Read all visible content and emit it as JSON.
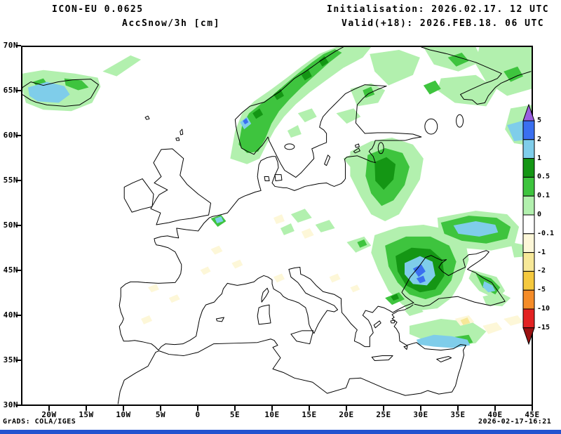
{
  "header": {
    "model": "ICON-EU 0.0625",
    "variable": "AccSnow/3h [cm]",
    "init": "Initialisation: 2026.02.17. 12 UTC",
    "valid": "Valid(+18): 2026.FEB.18. 06 UTC"
  },
  "footer": {
    "credit": "GrADS: COLA/IGES",
    "timestamp": "2026-02-17-16:21"
  },
  "map": {
    "lat_ticks": [
      "70N",
      "65N",
      "60N",
      "55N",
      "50N",
      "45N",
      "40N",
      "35N",
      "30N"
    ],
    "lon_ticks": [
      "20W",
      "15W",
      "10W",
      "5W",
      "0",
      "5E",
      "10E",
      "15E",
      "20E",
      "25E",
      "30E",
      "35E",
      "40E",
      "45E"
    ]
  },
  "colorbar": {
    "labels": [
      "5",
      "2",
      "1",
      "0.5",
      "0.1",
      "0",
      "-0.1",
      "-1",
      "-2",
      "-5",
      "-10",
      "-15"
    ],
    "segments": [
      "purple",
      "blue",
      "light-blue",
      "dark-green",
      "green",
      "light-green",
      "white",
      "cream",
      "pale-yellow",
      "gold",
      "orange",
      "red",
      "dark-red"
    ]
  },
  "palette": {
    "purple": "#9a5fe0",
    "blue": "#3a6ff0",
    "light-blue": "#7fcdea",
    "dark-green": "#149614",
    "green": "#3ec43e",
    "light-green": "#b2f0ae",
    "white": "#ffffff",
    "cream": "#fdf7d8",
    "pale-yellow": "#f7e898",
    "gold": "#f5c93e",
    "orange": "#f58c28",
    "red": "#e32222",
    "dark-red": "#9b1111",
    "taskbar-blue": "#2353cf"
  },
  "chart_data": {
    "type": "filled-contour-map",
    "title": "AccSnow/3h [cm]",
    "model": "ICON-EU 0.0625",
    "extent": {
      "lon": [
        "20W",
        "45E"
      ],
      "lat": [
        "30N",
        "70N"
      ]
    },
    "contour_levels_cm": [
      -15,
      -10,
      -5,
      -2,
      -1,
      -0.1,
      0,
      0.1,
      0.5,
      1,
      2,
      5
    ],
    "regions_shaded": [
      {
        "area": "Iceland",
        "value_cm": "0.1 to 2"
      },
      {
        "area": "Norwegian coast and mountains",
        "value_cm": "0.1 to 1"
      },
      {
        "area": "Northern Scandinavia / NW Russia",
        "value_cm": "0 to 0.5"
      },
      {
        "area": "Baltic states / Belarus",
        "value_cm": "0.1 to 1"
      },
      {
        "area": "Belgian coast spot",
        "value_cm": "1 to 2"
      },
      {
        "area": "Moldova / W Black Sea / S Ukraine",
        "value_cm": "0.5 to 2"
      },
      {
        "area": "E Ukraine elongated band",
        "value_cm": "1 to 2"
      },
      {
        "area": "NE Black Sea coast / Caucasus",
        "value_cm": "1 to 2"
      },
      {
        "area": "S Turkey coast",
        "value_cm": "1 to 2"
      },
      {
        "area": "Scattered C Europe / Iberia / Anatolia",
        "value_cm": "-1 to -0.1"
      }
    ]
  }
}
